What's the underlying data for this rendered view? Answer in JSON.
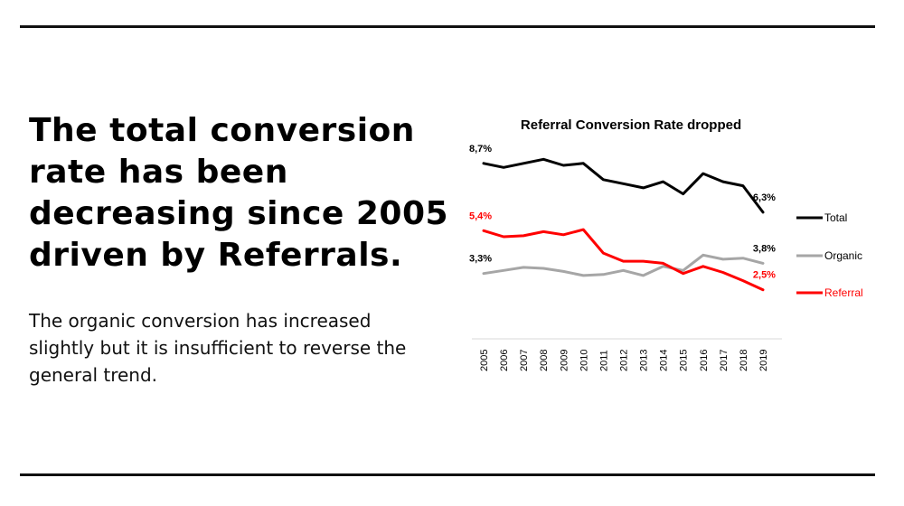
{
  "headline": "The total conversion rate has been decreasing since 2005 driven by Referrals.",
  "body_text": "The organic conversion has increased slightly but it is insufficient to reverse the general trend.",
  "colors": {
    "total": "#000000",
    "organic": "#a6a6a6",
    "referral": "#ff0000"
  },
  "chart_data": {
    "type": "line",
    "title": "Referral Conversion Rate dropped",
    "categories": [
      "2005",
      "2006",
      "2007",
      "2008",
      "2009",
      "2010",
      "2011",
      "2012",
      "2013",
      "2014",
      "2015",
      "2016",
      "2017",
      "2018",
      "2019"
    ],
    "series": [
      {
        "name": "Total",
        "values": [
          8.7,
          8.5,
          8.7,
          8.9,
          8.6,
          8.7,
          7.9,
          7.7,
          7.5,
          7.8,
          7.2,
          8.2,
          7.8,
          7.6,
          6.3
        ]
      },
      {
        "name": "Organic",
        "values": [
          3.3,
          3.45,
          3.6,
          3.55,
          3.4,
          3.2,
          3.25,
          3.45,
          3.2,
          3.65,
          3.45,
          4.2,
          4.0,
          4.05,
          3.8
        ]
      },
      {
        "name": "Referral",
        "values": [
          5.4,
          5.1,
          5.15,
          5.35,
          5.2,
          5.45,
          4.3,
          3.9,
          3.9,
          3.8,
          3.3,
          3.65,
          3.35,
          2.95,
          2.5
        ]
      }
    ],
    "data_labels": [
      {
        "series": "Total",
        "index": 0,
        "text": "8,7%"
      },
      {
        "series": "Total",
        "index": 14,
        "text": "6,3%"
      },
      {
        "series": "Organic",
        "index": 0,
        "text": "3,3%"
      },
      {
        "series": "Organic",
        "index": 14,
        "text": "3,8%"
      },
      {
        "series": "Referral",
        "index": 0,
        "text": "5,4%"
      },
      {
        "series": "Referral",
        "index": 14,
        "text": "2,5%"
      }
    ],
    "legend": "right",
    "grid": false
  }
}
